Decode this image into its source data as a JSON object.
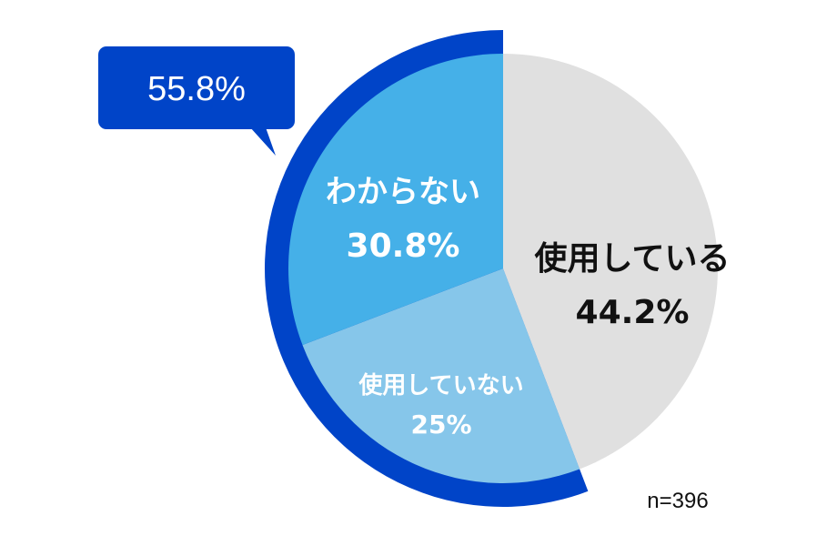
{
  "chart_data": {
    "type": "pie",
    "title": "",
    "slices": [
      {
        "label": "使用している",
        "value": 44.2,
        "value_label": "44.2%",
        "color": "#e0e0e0",
        "text_color": "#111111"
      },
      {
        "label": "使用していない",
        "value": 25,
        "value_label": "25%",
        "color": "#86c6ea",
        "text_color": "#ffffff"
      },
      {
        "label": "わからない",
        "value": 30.8,
        "value_label": "30.8%",
        "color": "#45b0e8",
        "text_color": "#ffffff"
      }
    ],
    "highlight": {
      "value": 55.8,
      "label": "55.8%",
      "covers": [
        "使用していない",
        "わからない"
      ],
      "color": "#0044c8"
    },
    "sample_size": "n=396"
  }
}
